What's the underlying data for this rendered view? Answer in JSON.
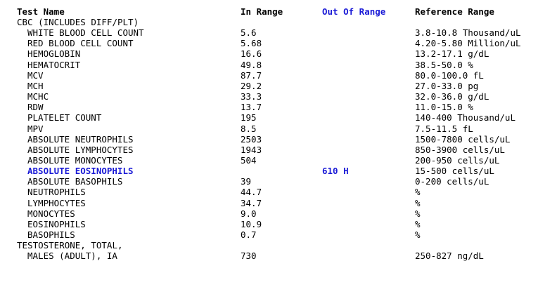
{
  "header": {
    "test_name": "Test Name",
    "in_range": "In Range",
    "out_of_range": "Out Of Range",
    "reference_range": "Reference Range"
  },
  "colors": {
    "out_of_range": "#1a1ad6"
  },
  "rows": [
    {
      "name": "CBC (INCLUDES DIFF/PLT)",
      "in": "",
      "out": "",
      "ref": "",
      "indent": false,
      "flag": false
    },
    {
      "name": "WHITE BLOOD CELL COUNT",
      "in": "5.6",
      "out": "",
      "ref": "3.8-10.8 Thousand/uL",
      "indent": true,
      "flag": false
    },
    {
      "name": "RED BLOOD CELL COUNT",
      "in": "5.68",
      "out": "",
      "ref": "4.20-5.80 Million/uL",
      "indent": true,
      "flag": false
    },
    {
      "name": "HEMOGLOBIN",
      "in": "16.6",
      "out": "",
      "ref": "13.2-17.1 g/dL",
      "indent": true,
      "flag": false
    },
    {
      "name": "HEMATOCRIT",
      "in": "49.8",
      "out": "",
      "ref": "38.5-50.0 %",
      "indent": true,
      "flag": false
    },
    {
      "name": "MCV",
      "in": "87.7",
      "out": "",
      "ref": "80.0-100.0 fL",
      "indent": true,
      "flag": false
    },
    {
      "name": "MCH",
      "in": "29.2",
      "out": "",
      "ref": "27.0-33.0 pg",
      "indent": true,
      "flag": false
    },
    {
      "name": "MCHC",
      "in": "33.3",
      "out": "",
      "ref": "32.0-36.0 g/dL",
      "indent": true,
      "flag": false
    },
    {
      "name": "RDW",
      "in": "13.7",
      "out": "",
      "ref": "11.0-15.0 %",
      "indent": true,
      "flag": false
    },
    {
      "name": "PLATELET COUNT",
      "in": "195",
      "out": "",
      "ref": "140-400 Thousand/uL",
      "indent": true,
      "flag": false
    },
    {
      "name": "MPV",
      "in": "8.5",
      "out": "",
      "ref": "7.5-11.5 fL",
      "indent": true,
      "flag": false
    },
    {
      "name": "ABSOLUTE NEUTROPHILS",
      "in": "2503",
      "out": "",
      "ref": "1500-7800 cells/uL",
      "indent": true,
      "flag": false
    },
    {
      "name": "ABSOLUTE LYMPHOCYTES",
      "in": "1943",
      "out": "",
      "ref": "850-3900 cells/uL",
      "indent": true,
      "flag": false
    },
    {
      "name": "ABSOLUTE MONOCYTES",
      "in": "504",
      "out": "",
      "ref": "200-950 cells/uL",
      "indent": true,
      "flag": false
    },
    {
      "name": "ABSOLUTE EOSINOPHILS",
      "in": "",
      "out": "610 H",
      "ref": "15-500 cells/uL",
      "indent": true,
      "flag": true
    },
    {
      "name": "ABSOLUTE BASOPHILS",
      "in": "39",
      "out": "",
      "ref": "0-200 cells/uL",
      "indent": true,
      "flag": false
    },
    {
      "name": "NEUTROPHILS",
      "in": "44.7",
      "out": "",
      "ref": "%",
      "indent": true,
      "flag": false
    },
    {
      "name": "LYMPHOCYTES",
      "in": "34.7",
      "out": "",
      "ref": "%",
      "indent": true,
      "flag": false
    },
    {
      "name": "MONOCYTES",
      "in": "9.0",
      "out": "",
      "ref": "%",
      "indent": true,
      "flag": false
    },
    {
      "name": "EOSINOPHILS",
      "in": "10.9",
      "out": "",
      "ref": "%",
      "indent": true,
      "flag": false
    },
    {
      "name": "BASOPHILS",
      "in": "0.7",
      "out": "",
      "ref": "%",
      "indent": true,
      "flag": false
    },
    {
      "name": "TESTOSTERONE, TOTAL,",
      "in": "",
      "out": "",
      "ref": "",
      "indent": false,
      "flag": false
    },
    {
      "name": "MALES (ADULT), IA",
      "in": "730",
      "out": "",
      "ref": "250-827 ng/dL",
      "indent": true,
      "flag": false
    }
  ]
}
